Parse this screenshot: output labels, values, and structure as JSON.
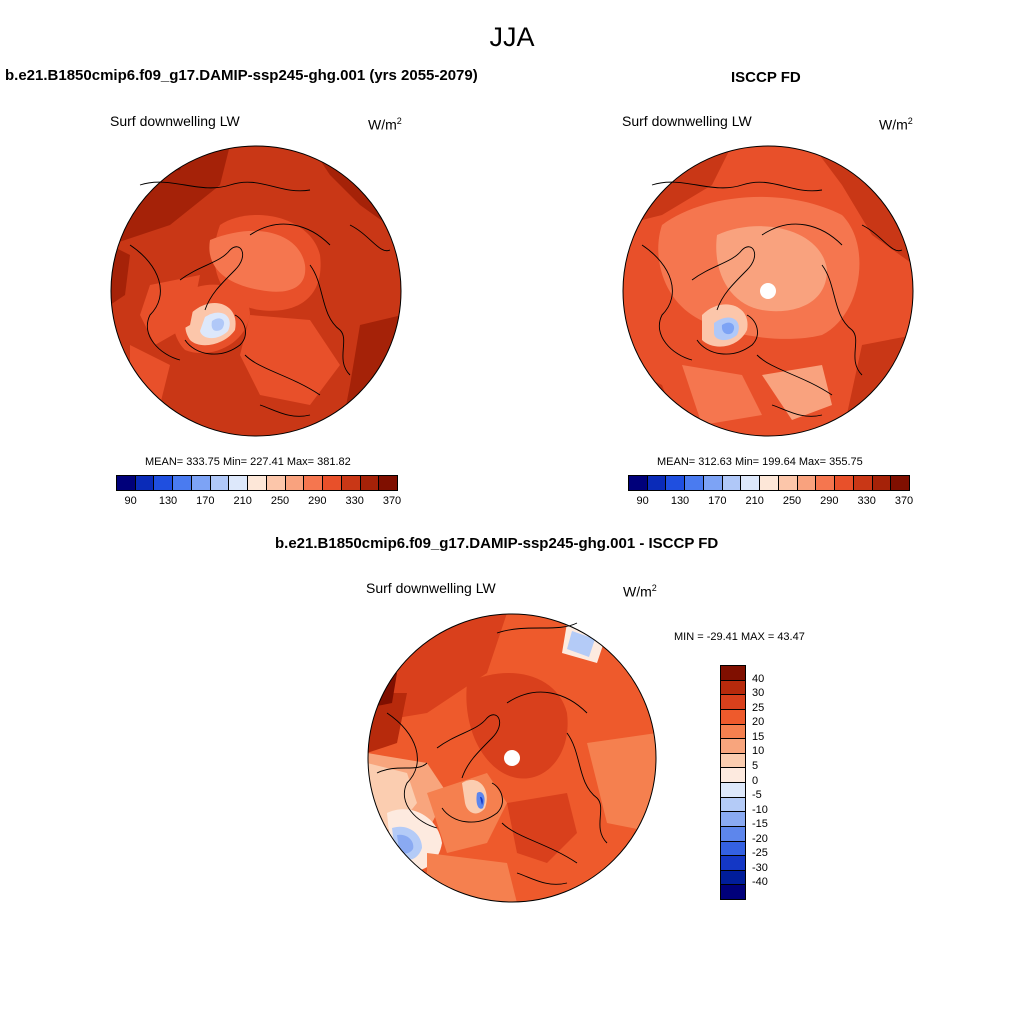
{
  "main_title": "JJA",
  "panels": [
    {
      "title": "b.e21.B1850cmip6.f09_g17.DAMIP-ssp245-ghg.001 (yrs 2055-2079)",
      "field": "Surf downwelling LW",
      "units": "W/m",
      "units_sup": "2",
      "stats": "MEAN= 333.75  Min= 227.41  Max= 381.82",
      "colorbar_ticks": [
        "90",
        "130",
        "170",
        "210",
        "250",
        "290",
        "330",
        "370"
      ]
    },
    {
      "title": "ISCCP FD",
      "field": "Surf downwelling LW",
      "units": "W/m",
      "units_sup": "2",
      "stats": "MEAN= 312.63  Min= 199.64  Max= 355.75",
      "colorbar_ticks": [
        "90",
        "130",
        "170",
        "210",
        "250",
        "290",
        "330",
        "370"
      ]
    },
    {
      "title": "b.e21.B1850cmip6.f09_g17.DAMIP-ssp245-ghg.001 - ISCCP FD",
      "field": "Surf downwelling LW",
      "units": "W/m",
      "units_sup": "2",
      "stats": "MIN = -29.41 MAX =  43.47",
      "colorbar_ticks": [
        "40",
        "30",
        "25",
        "20",
        "15",
        "10",
        "5",
        "0",
        "-5",
        "-10",
        "-15",
        "-20",
        "-25",
        "-30",
        "-40"
      ]
    }
  ],
  "colors": {
    "abs_scale": [
      "#00007a",
      "#0a2bb8",
      "#1f4fe0",
      "#4a7bf0",
      "#7da3f5",
      "#b0c8f8",
      "#dde8fb",
      "#fde7d8",
      "#fcc6aa",
      "#f9a27e",
      "#f5764f",
      "#e8502a",
      "#c93716",
      "#a52208",
      "#7f0f00"
    ],
    "diff_scale": [
      "#7f0f00",
      "#b72a0c",
      "#d9401c",
      "#ee5a2c",
      "#f5804f",
      "#f8a57d",
      "#fbcdb0",
      "#fdeadf",
      "#dde8fb",
      "#b4cbf7",
      "#8aaaf2",
      "#5d86ec",
      "#3461e2",
      "#1437c5",
      "#001d9a",
      "#00007a"
    ]
  }
}
